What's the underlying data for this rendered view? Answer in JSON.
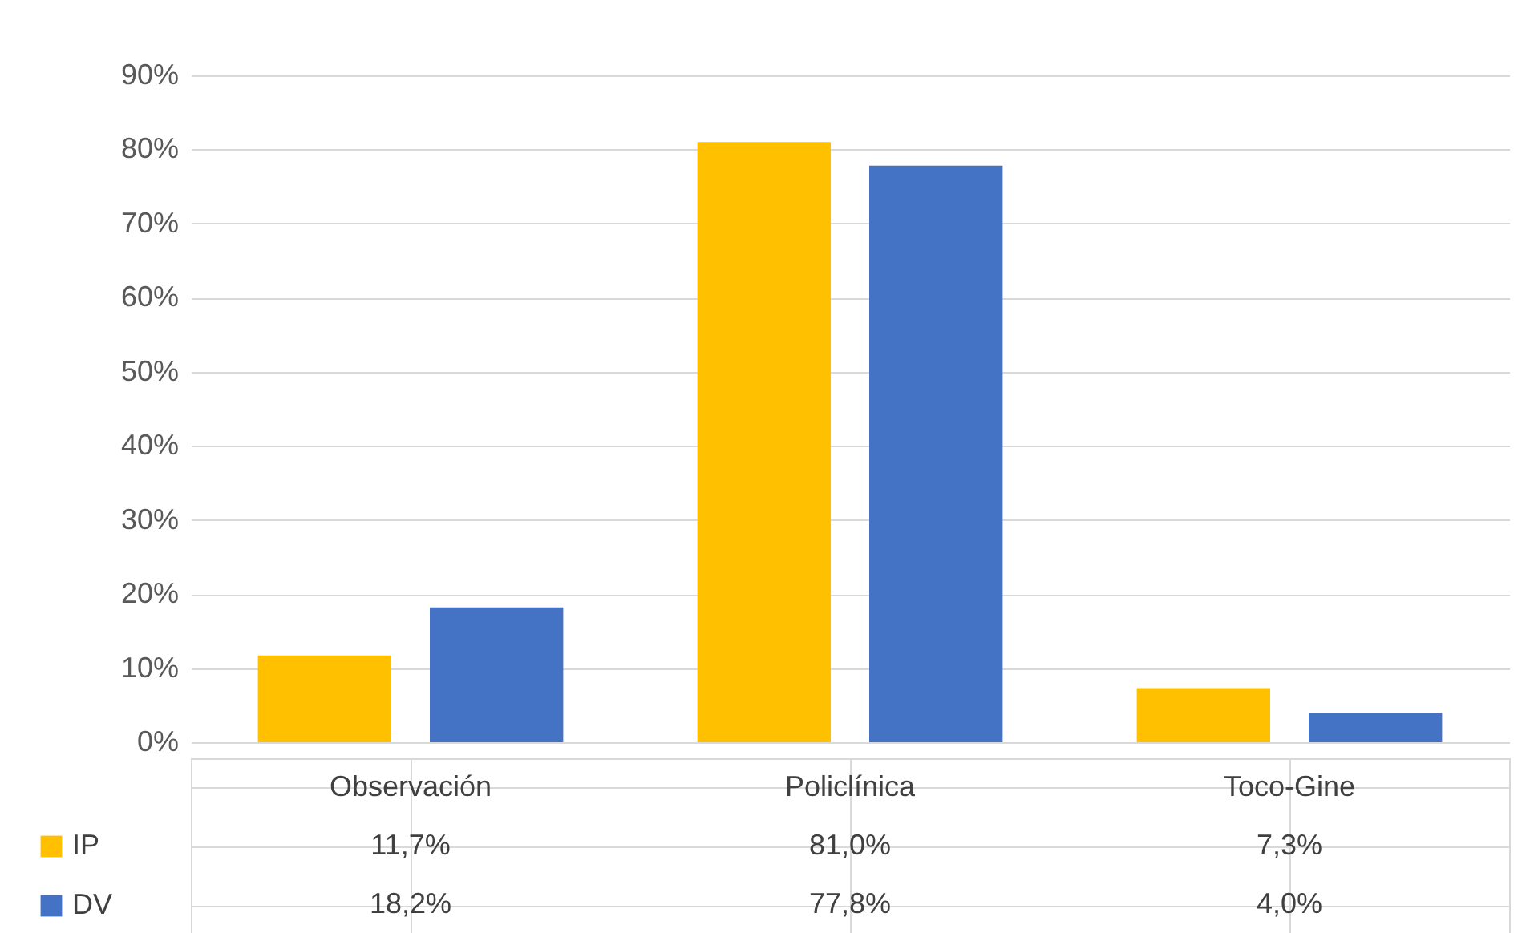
{
  "chart_data": {
    "type": "bar",
    "categories": [
      "Observación",
      "Policlínica",
      "Toco-Gine"
    ],
    "series": [
      {
        "name": "IP",
        "color": "#ffc000",
        "values": [
          11.7,
          81.0,
          7.3
        ],
        "value_labels": [
          "11,7%",
          "81,0%",
          "7,3%"
        ]
      },
      {
        "name": "DV",
        "color": "#4472c4",
        "values": [
          18.2,
          77.8,
          4.0
        ],
        "value_labels": [
          "18,2%",
          "77,8%",
          "4,0%"
        ]
      }
    ],
    "ylim": [
      0,
      90
    ],
    "yticks": [
      {
        "value": 0,
        "label": "0%"
      },
      {
        "value": 10,
        "label": "10%"
      },
      {
        "value": 20,
        "label": "20%"
      },
      {
        "value": 30,
        "label": "30%"
      },
      {
        "value": 40,
        "label": "40%"
      },
      {
        "value": 50,
        "label": "50%"
      },
      {
        "value": 60,
        "label": "60%"
      },
      {
        "value": 70,
        "label": "70%"
      },
      {
        "value": 80,
        "label": "80%"
      },
      {
        "value": 90,
        "label": "90%"
      }
    ],
    "grid": "y",
    "legend": "bottom"
  }
}
